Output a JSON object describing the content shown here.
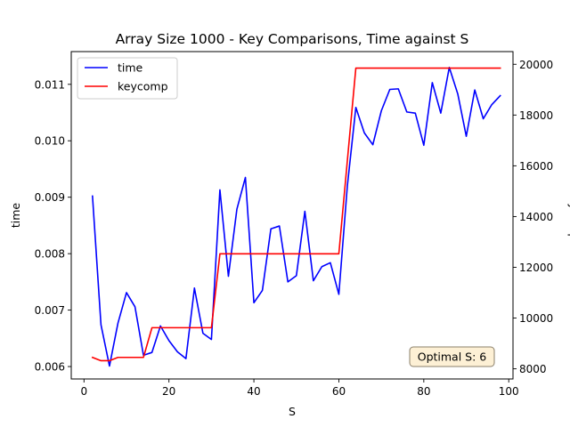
{
  "chart_data": {
    "type": "line",
    "title": "Array Size 1000 - Key Comparisons, Time against S",
    "xlabel": "S",
    "ylabel_left": "time",
    "ylabel_right": "keycomp",
    "xlim": [
      -3,
      101
    ],
    "ylim_left": [
      0.00578,
      0.01158
    ],
    "ylim_right": [
      7600,
      20500
    ],
    "x_ticks": [
      0,
      20,
      40,
      60,
      80,
      100
    ],
    "y_ticks_left": [
      0.006,
      0.007,
      0.008,
      0.009,
      0.01,
      0.011
    ],
    "y_ticks_left_labels": [
      "0.006",
      "0.007",
      "0.008",
      "0.009",
      "0.010",
      "0.011"
    ],
    "y_ticks_right": [
      8000,
      10000,
      12000,
      14000,
      16000,
      18000,
      20000
    ],
    "grid": false,
    "legend": {
      "placement": "top-left"
    },
    "series": [
      {
        "name": "time",
        "color": "#0000ff",
        "axis": "left",
        "x": [
          2,
          4,
          6,
          8,
          10,
          12,
          14,
          16,
          18,
          20,
          22,
          24,
          26,
          28,
          30,
          32,
          34,
          36,
          38,
          40,
          42,
          44,
          46,
          48,
          50,
          52,
          54,
          56,
          58,
          60,
          62,
          64,
          66,
          68,
          70,
          72,
          74,
          76,
          78,
          80,
          82,
          84,
          86,
          88,
          90,
          92,
          94,
          96,
          98
        ],
        "y": [
          0.00902,
          0.00674,
          0.00601,
          0.00677,
          0.00731,
          0.00706,
          0.0062,
          0.00625,
          0.00672,
          0.00646,
          0.00626,
          0.00614,
          0.00739,
          0.00659,
          0.00648,
          0.00913,
          0.0076,
          0.00879,
          0.00935,
          0.00713,
          0.00735,
          0.00844,
          0.00849,
          0.0075,
          0.00761,
          0.00875,
          0.00752,
          0.00777,
          0.00784,
          0.00728,
          0.0092,
          0.01059,
          0.01014,
          0.00993,
          0.01053,
          0.01091,
          0.01092,
          0.01051,
          0.01049,
          0.00992,
          0.01103,
          0.01049,
          0.0113,
          0.01083,
          0.01008,
          0.0109,
          0.01039,
          0.01064,
          0.0108
        ]
      },
      {
        "name": "keycomp",
        "color": "#ff0000",
        "axis": "right",
        "x": [
          2,
          4,
          6,
          8,
          10,
          12,
          14,
          16,
          18,
          20,
          22,
          24,
          26,
          28,
          30,
          32,
          34,
          36,
          38,
          40,
          42,
          44,
          46,
          48,
          50,
          52,
          54,
          56,
          58,
          60,
          62,
          64,
          66,
          68,
          70,
          72,
          74,
          76,
          78,
          80,
          82,
          84,
          86,
          88,
          90,
          92,
          94,
          96,
          98
        ],
        "y": [
          8450,
          8320,
          8320,
          8450,
          8450,
          8450,
          8450,
          9620,
          9620,
          9620,
          9620,
          9620,
          9620,
          9620,
          9620,
          12530,
          12530,
          12530,
          12530,
          12530,
          12530,
          12530,
          12530,
          12530,
          12530,
          12530,
          12530,
          12530,
          12530,
          12530,
          16200,
          19850,
          19850,
          19850,
          19850,
          19850,
          19850,
          19850,
          19850,
          19850,
          19850,
          19850,
          19850,
          19850,
          19850,
          19850,
          19850,
          19850,
          19850
        ]
      }
    ],
    "annotation": {
      "text": "Optimal S: 6",
      "placement": "bottom-right",
      "background": "#fdf0d5",
      "border": "#8a7f6a"
    }
  }
}
